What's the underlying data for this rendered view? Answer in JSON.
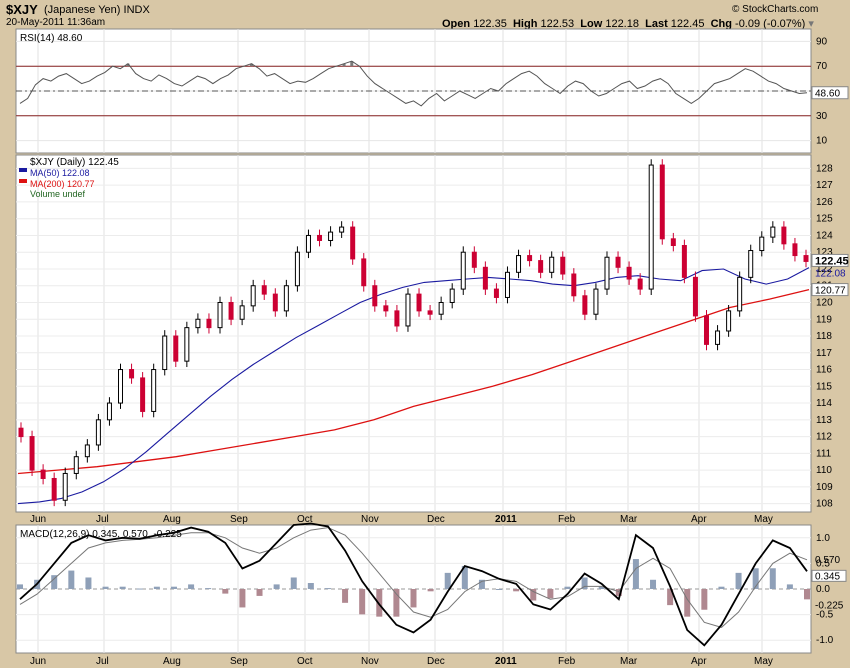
{
  "header": {
    "symbol": "$XJY",
    "name": "(Japanese Yen)",
    "exchange": "INDX",
    "datetime": "20-May-2011 11:36am",
    "open_label": "Open",
    "open": "122.35",
    "high_label": "High",
    "high": "122.53",
    "low_label": "Low",
    "low": "122.18",
    "last_label": "Last",
    "last": "122.45",
    "chg_label": "Chg",
    "chg": "-0.09 (-0.07%)",
    "watermark": "© StockCharts.com"
  },
  "colors": {
    "price_up": "#000000",
    "price_down": "#cc0033",
    "ma50": "#1a1aa0",
    "ma200": "#dd1111",
    "rsi": "#555555",
    "macd": "#000000",
    "signal": "#777777",
    "hist_pos": "#8fa0b8",
    "hist_neg": "#b08890",
    "panel_bg": "#ffffff",
    "frame": "#d8c7a6"
  },
  "chart_data": [
    {
      "type": "line",
      "title": "RSI(14) 48.60",
      "legend": "RSI(14)",
      "last": "48.60",
      "ylim": [
        0,
        100
      ],
      "ticks": [
        "90",
        "70",
        "50",
        "30",
        "10"
      ],
      "levels": [
        70,
        50,
        30
      ],
      "values": [
        40,
        44,
        55,
        60,
        58,
        62,
        64,
        60,
        56,
        58,
        62,
        65,
        70,
        68,
        72,
        64,
        60,
        58,
        63,
        60,
        56,
        54,
        58,
        62,
        60,
        56,
        60,
        63,
        68,
        70,
        72,
        68,
        62,
        64,
        60,
        56,
        58,
        57,
        60,
        64,
        68,
        70,
        72,
        74,
        70,
        62,
        56,
        52,
        48,
        44,
        40,
        42,
        38,
        44,
        48,
        42,
        46,
        50,
        47,
        44,
        48,
        52,
        50,
        56,
        60,
        64,
        66,
        62,
        56,
        52,
        48,
        54,
        58,
        56,
        50,
        46,
        48,
        52,
        56,
        58,
        52,
        54,
        58,
        60,
        56,
        48,
        44,
        40,
        44,
        50,
        56,
        58,
        60,
        64,
        68,
        66,
        62,
        58,
        56,
        52,
        50,
        48,
        48.6
      ]
    },
    {
      "type": "candlestick",
      "legend": [
        "$XJY (Daily) 122.45",
        "MA(50) 122.08",
        "MA(200) 120.77",
        "Volume undef"
      ],
      "x_ticks": [
        "Jun",
        "Jul",
        "Aug",
        "Sep",
        "Oct",
        "Nov",
        "Dec",
        "2011",
        "Feb",
        "Mar",
        "Apr",
        "May"
      ],
      "y_ticks": [
        "128",
        "127",
        "126",
        "125",
        "124",
        "123",
        "122",
        "121",
        "120",
        "119",
        "118",
        "117",
        "116",
        "115",
        "114",
        "113",
        "112",
        "111",
        "110",
        "109",
        "108"
      ],
      "ylim": [
        107.5,
        128.8
      ],
      "last_labels": {
        "last": "122.45",
        "ma50": "122.08",
        "ma200": "120.77"
      },
      "close": [
        112,
        110,
        109.5,
        108.2,
        109.8,
        110.8,
        111.5,
        113,
        114,
        116,
        115.5,
        113.5,
        116,
        118,
        116.5,
        118.5,
        119,
        118.5,
        120,
        119,
        119.8,
        121,
        120.5,
        119.5,
        121,
        123,
        124,
        123.7,
        124.2,
        124.5,
        122.6,
        121,
        119.8,
        119.5,
        118.6,
        120.5,
        119.5,
        119.3,
        120,
        120.8,
        123,
        122.1,
        120.8,
        120.3,
        121.8,
        122.8,
        122.5,
        121.8,
        122.7,
        121.7,
        120.4,
        119.3,
        120.8,
        122.7,
        122.1,
        121.4,
        120.8,
        128.2,
        123.8,
        123.4,
        121.5,
        119.2,
        117.5,
        118.3,
        119.5,
        121.5,
        123.1,
        123.9,
        124.5,
        123.5,
        122.8,
        122.45
      ],
      "ma50": [
        108,
        108.1,
        108.3,
        108.7,
        109.3,
        110.1,
        111.1,
        112.2,
        113.3,
        114.4,
        115.4,
        116.3,
        117.1,
        117.9,
        118.6,
        119.3,
        120,
        120.5,
        120.9,
        121.2,
        121.3,
        121.4,
        121.5,
        121.4,
        121.3,
        121.1,
        121,
        121.2,
        121.5,
        121.6,
        121.4,
        121.3,
        121.9,
        122,
        121.4,
        121.1,
        121.4,
        122.08
      ],
      "ma200": [
        109.8,
        110,
        110.2,
        110.5,
        110.8,
        111.2,
        111.6,
        112,
        112.4,
        113,
        113.8,
        114.4,
        115,
        115.7,
        116.5,
        117.3,
        118.1,
        118.9,
        119.7,
        120.2,
        120.77
      ]
    },
    {
      "type": "line",
      "title": "MACD(12,26,9) 0.345, 0.570, -0.225",
      "legend": "MACD(12,26,9)",
      "series_values": [
        "0.345",
        "0.570",
        "-0.225"
      ],
      "ylim": [
        -1.25,
        1.25
      ],
      "ticks": [
        "1.0",
        "0.5",
        "0.0",
        "-0.5",
        "-1.0"
      ],
      "last_labels": [
        "0.570",
        "0.345",
        "-0.225"
      ],
      "macd": [
        -0.2,
        0.1,
        0.5,
        0.9,
        1.05,
        0.95,
        1.0,
        0.98,
        1.05,
        1.1,
        1.2,
        1.12,
        0.9,
        0.4,
        0.55,
        0.9,
        1.25,
        1.28,
        1.22,
        0.75,
        0.15,
        -0.3,
        -0.7,
        -0.85,
        -0.6,
        -0.05,
        0.45,
        0.35,
        0.2,
        0.1,
        -0.3,
        -0.4,
        -0.1,
        0.3,
        0.1,
        -0.2,
        1.05,
        0.8,
        0.05,
        -0.8,
        -1.1,
        -0.7,
        -0.1,
        0.5,
        0.95,
        0.8,
        0.345
      ],
      "signal": [
        -0.3,
        -0.1,
        0.2,
        0.5,
        0.8,
        0.9,
        0.95,
        0.97,
        1.0,
        1.05,
        1.1,
        1.1,
        1.0,
        0.8,
        0.7,
        0.8,
        1.0,
        1.15,
        1.2,
        1.05,
        0.7,
        0.3,
        -0.1,
        -0.45,
        -0.55,
        -0.4,
        -0.05,
        0.15,
        0.2,
        0.15,
        -0.05,
        -0.2,
        -0.15,
        0.05,
        0.05,
        -0.05,
        0.4,
        0.6,
        0.4,
        -0.2,
        -0.65,
        -0.75,
        -0.45,
        0.05,
        0.5,
        0.7,
        0.57
      ],
      "histogram_last": "-0.225"
    }
  ]
}
